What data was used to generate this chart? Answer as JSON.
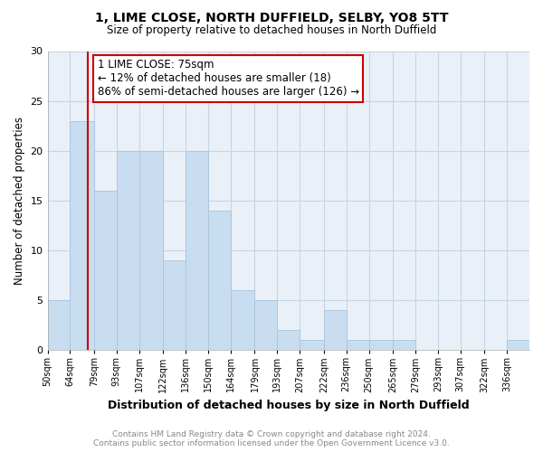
{
  "title": "1, LIME CLOSE, NORTH DUFFIELD, SELBY, YO8 5TT",
  "subtitle": "Size of property relative to detached houses in North Duffield",
  "xlabel": "Distribution of detached houses by size in North Duffield",
  "ylabel": "Number of detached properties",
  "footer_line1": "Contains HM Land Registry data © Crown copyright and database right 2024.",
  "footer_line2": "Contains public sector information licensed under the Open Government Licence v3.0.",
  "bin_labels": [
    "50sqm",
    "64sqm",
    "79sqm",
    "93sqm",
    "107sqm",
    "122sqm",
    "136sqm",
    "150sqm",
    "164sqm",
    "179sqm",
    "193sqm",
    "207sqm",
    "222sqm",
    "236sqm",
    "250sqm",
    "265sqm",
    "279sqm",
    "293sqm",
    "307sqm",
    "322sqm",
    "336sqm"
  ],
  "bin_edges": [
    50,
    64,
    79,
    93,
    107,
    122,
    136,
    150,
    164,
    179,
    193,
    207,
    222,
    236,
    250,
    265,
    279,
    293,
    307,
    322,
    336,
    350
  ],
  "bar_heights": [
    5,
    23,
    16,
    20,
    20,
    9,
    20,
    14,
    6,
    5,
    2,
    1,
    4,
    1,
    1,
    1,
    0,
    0,
    0,
    0,
    1
  ],
  "bar_color": "#c9ddf0",
  "bar_edge_color": "#a8c4dc",
  "annotation_title": "1 LIME CLOSE: 75sqm",
  "annotation_line1": "← 12% of detached houses are smaller (18)",
  "annotation_line2": "86% of semi-detached houses are larger (126) →",
  "vline_x_sqm": 75,
  "vline_color": "#cc0000",
  "annotation_box_color": "#ffffff",
  "annotation_box_edge": "#cc0000",
  "ylim": [
    0,
    30
  ],
  "yticks": [
    0,
    5,
    10,
    15,
    20,
    25,
    30
  ],
  "background_color": "#ffffff",
  "plot_bg_color": "#eaf0f8",
  "grid_color": "#c8d4e4"
}
